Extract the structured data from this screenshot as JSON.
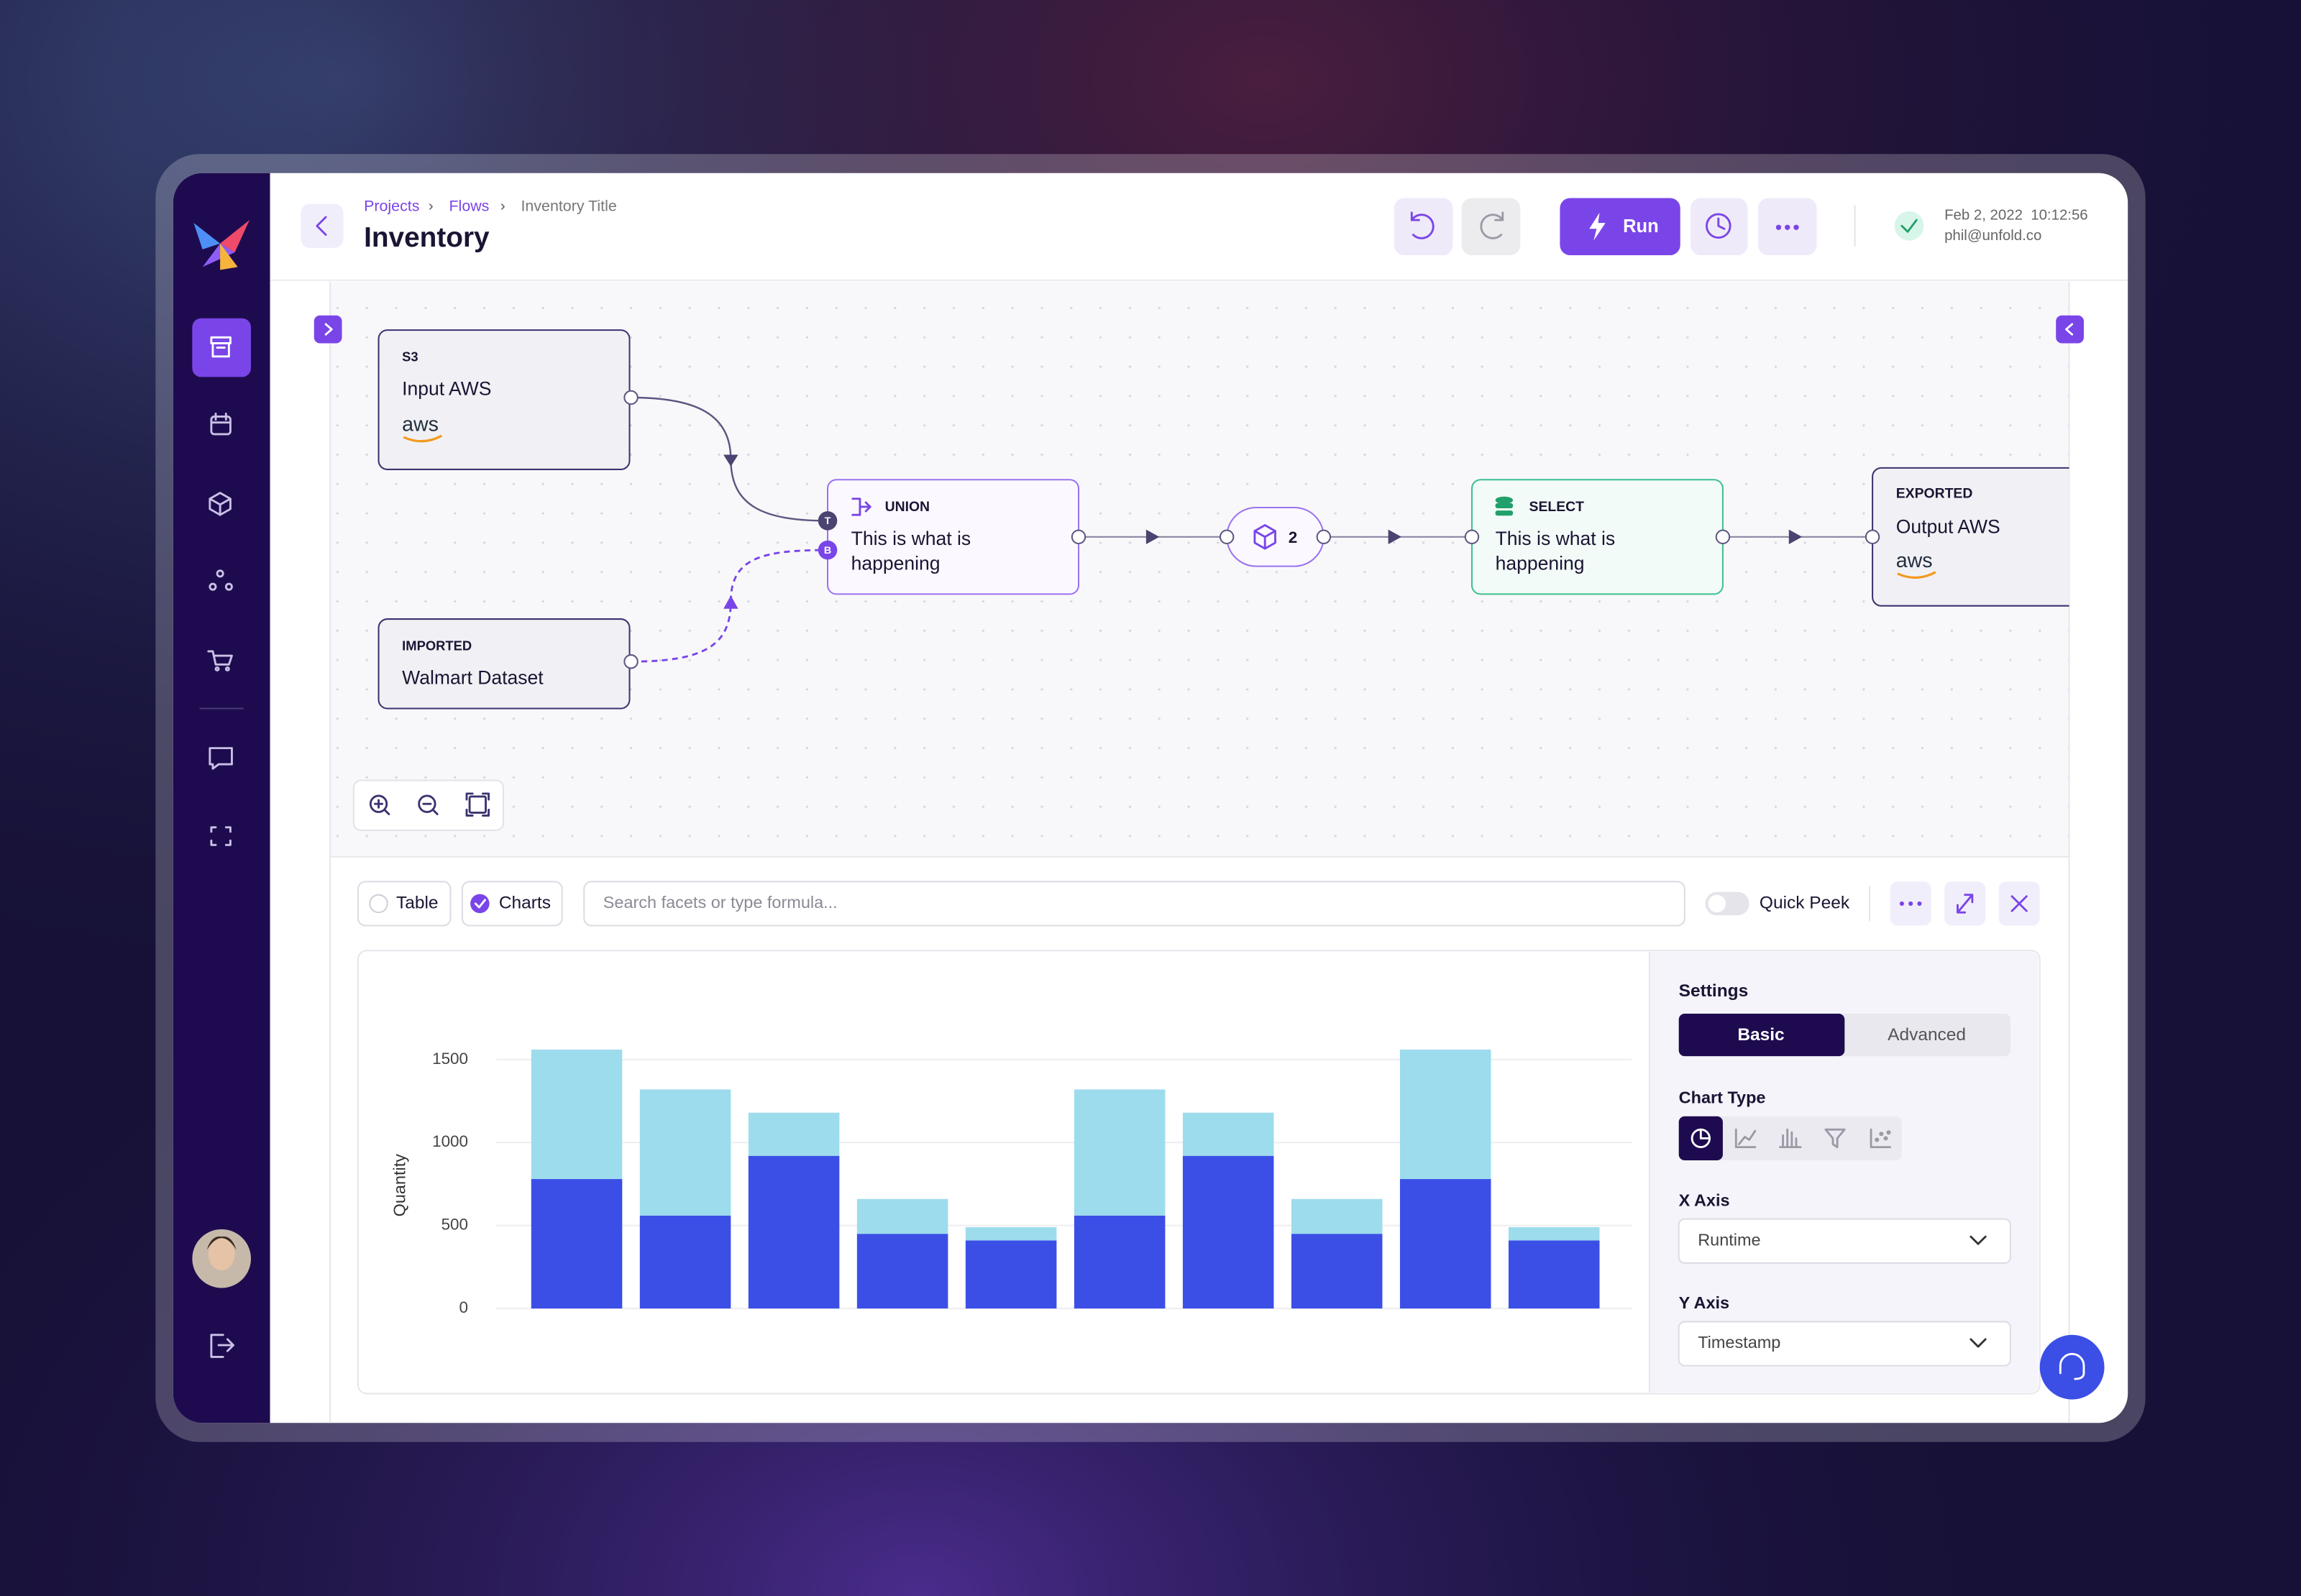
{
  "header": {
    "breadcrumb": [
      "Projects",
      "Flows",
      "Inventory Title"
    ],
    "title": "Inventory",
    "run": "Run",
    "date": "Feb 2, 2022  10:12:56",
    "email": "phil@unfold.co"
  },
  "nodes": [
    {
      "tag": "S3",
      "label": "Input AWS",
      "logo": "aws"
    },
    {
      "tag": "IMPORTED",
      "label": "Walmart Dataset"
    },
    {
      "tag": "UNION",
      "lines": [
        "This is what is",
        "happening"
      ],
      "ports": [
        "T",
        "B"
      ]
    },
    {
      "count": "2"
    },
    {
      "tag": "SELECT",
      "lines": [
        "This is what is",
        "happening"
      ]
    },
    {
      "tag": "EXPORTED",
      "label": "Output AWS",
      "logo": "aws"
    }
  ],
  "toolbar": {
    "table": "Table",
    "charts": "Charts",
    "search_placeholder": "Search facets or type formula...",
    "quick_peek": "Quick Peek"
  },
  "settings": {
    "title": "Settings",
    "tabs": [
      "Basic",
      "Advanced"
    ],
    "chart_type_label": "Chart Type",
    "x_axis_label": "X Axis",
    "x_axis_value": "Runtime",
    "y_axis_label": "Y Axis",
    "y_axis_value": "Timestamp"
  },
  "chart_data": {
    "type": "bar",
    "stacked": true,
    "categories": [
      null,
      null,
      null,
      null,
      null,
      null,
      null,
      null,
      null,
      null
    ],
    "series": [
      {
        "color": "#3b4fe6",
        "values": [
          780,
          560,
          920,
          450,
          410,
          560,
          920,
          450,
          780,
          410
        ]
      },
      {
        "color": "#9ddcec",
        "values": [
          780,
          760,
          260,
          210,
          80,
          760,
          260,
          210,
          780,
          80
        ]
      }
    ],
    "y_label": "Quantity",
    "ylim": [
      0,
      1600
    ],
    "yticks": [
      0,
      500,
      1000,
      1500
    ],
    "grid": true
  }
}
